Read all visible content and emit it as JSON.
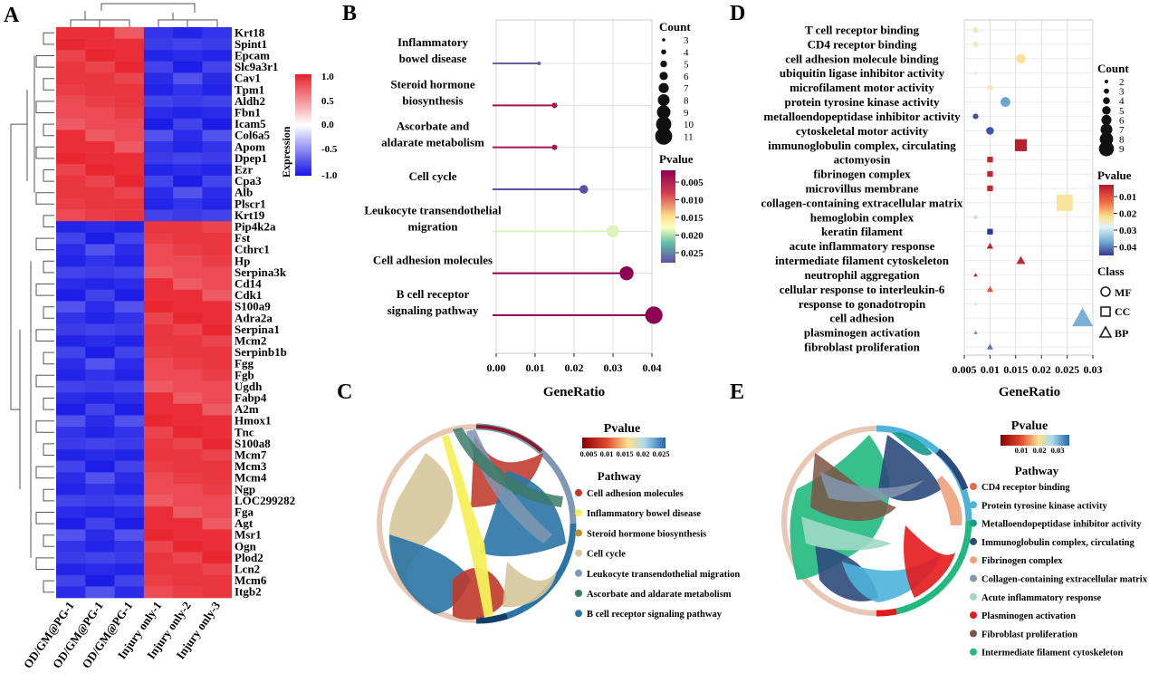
{
  "panel_letters": [
    "A",
    "B",
    "C",
    "D",
    "E"
  ],
  "panelA": {
    "samples": [
      "OD/GM@PG-1",
      "OD/GM@PG-1",
      "OD/GM@PG-1",
      "Injury only-1",
      "Injury only-2",
      "Injury only-3"
    ],
    "genes": [
      "Krt18",
      "Spint1",
      "Epcam",
      "Slc9a3r1",
      "Cav1",
      "Tpm1",
      "Aldh2",
      "Fbn1",
      "Icam5",
      "Col6a5",
      "Apom",
      "Dpep1",
      "Ezr",
      "Cpa3",
      "Alb",
      "Plscr1",
      "Krt19",
      "Pip4k2a",
      "Fst",
      "Cthrc1",
      "Hp",
      "Serpina3k",
      "Cd14",
      "Cdk1",
      "S100a9",
      "Adra2a",
      "Serpina1",
      "Mcm2",
      "Serpinb1b",
      "Fgg",
      "Fgb",
      "Ugdh",
      "Fabp4",
      "A2m",
      "Hmox1",
      "Tnc",
      "S100a8",
      "Mcm7",
      "Mcm3",
      "Mcm4",
      "Ngp",
      "LOC299282",
      "Fga",
      "Agt",
      "Msr1",
      "Ogn",
      "Plod2",
      "Lcn2",
      "Mcm6",
      "Itgb2"
    ],
    "colorbar": {
      "title": "Expression",
      "ticks": [
        "1.0",
        "0.5",
        "0.0",
        "-0.5",
        "-1.0"
      ],
      "max_color": "#e8202a",
      "mid_color": "#ffffff",
      "min_color": "#1515e6"
    }
  },
  "chart_data": [
    {
      "panel": "B",
      "type": "lollipop",
      "title": "",
      "xlabel": "GeneRatio",
      "ylabel": "",
      "xlim": [
        0,
        0.04
      ],
      "xticks": [
        "0.00",
        "0.01",
        "0.02",
        "0.03",
        "0.04"
      ],
      "categories": [
        "Inflammatory\nbowel disease",
        "Steroid hormone\nbiosynthesis",
        "Ascorbate and\naldarate metabolism",
        "Cell cycle",
        "Leukocyte transendothelial\nmigration",
        "Cell adhesion molecules",
        "B cell receptor\nsignaling pathway"
      ],
      "gene_ratio": [
        0.011,
        0.015,
        0.015,
        0.0225,
        0.03,
        0.0335,
        0.0405
      ],
      "count": [
        3,
        4,
        4,
        6,
        8,
        9,
        11
      ],
      "pvalue": [
        0.026,
        0.003,
        0.003,
        0.027,
        0.018,
        0.001,
        0.001
      ],
      "size_legend": {
        "title": "Count",
        "labels": [
          "3",
          "4",
          "5",
          "6",
          "7",
          "8",
          "9",
          "10",
          "11"
        ]
      },
      "color_legend": {
        "title": "Pvalue",
        "ticks": [
          "0.005",
          "0.010",
          "0.015",
          "0.020",
          "0.025"
        ]
      }
    },
    {
      "panel": "D",
      "type": "scatter",
      "title": "",
      "xlabel": "GeneRatio",
      "ylabel": "",
      "xlim": [
        0.005,
        0.03
      ],
      "xticks": [
        "0.005",
        "0.01",
        "0.015",
        "0.02",
        "0.025",
        "0.03"
      ],
      "categories": [
        "T cell receptor binding",
        "CD4 receptor binding",
        "cell adhesion molecule binding",
        "ubiquitin ligase inhibitor activity",
        "microfilament motor activity",
        "protein tyrosine kinase activity",
        "metalloendopeptidase inhibitor activity",
        "cytoskeletal motor activity",
        "immunoglobulin complex, circulating",
        "actomyosin",
        "fibrinogen complex",
        "microvillus membrane",
        "collagen-containing extracellular matrix",
        "hemoglobin complex",
        "keratin filament",
        "acute inflammatory response",
        "intermediate filament cytoskeleton",
        "neutrophil aggregation",
        "cellular response to interleukin-6",
        "response to gonadotropin",
        "cell adhesion",
        "plasminogen activation",
        "fibroblast proliferation"
      ],
      "gene_ratio": [
        0.0072,
        0.0072,
        0.016,
        0.0072,
        0.01,
        0.013,
        0.0072,
        0.01,
        0.016,
        0.01,
        0.01,
        0.01,
        0.0245,
        0.0072,
        0.01,
        0.01,
        0.016,
        0.0072,
        0.01,
        0.0072,
        0.028,
        0.0072,
        0.01
      ],
      "count": [
        3,
        3,
        5,
        2,
        3,
        5,
        3,
        4,
        6,
        3,
        3,
        3,
        8,
        2,
        3,
        3,
        4,
        2,
        3,
        2,
        9,
        2,
        3
      ],
      "pvalue": [
        0.024,
        0.024,
        0.022,
        0.025,
        0.024,
        0.037,
        0.043,
        0.043,
        0.003,
        0.004,
        0.004,
        0.004,
        0.022,
        0.03,
        0.045,
        0.003,
        0.004,
        0.004,
        0.01,
        0.025,
        0.036,
        0.038,
        0.04
      ],
      "class": [
        "MF",
        "MF",
        "MF",
        "MF",
        "MF",
        "MF",
        "MF",
        "MF",
        "CC",
        "CC",
        "CC",
        "CC",
        "CC",
        "CC",
        "CC",
        "BP",
        "BP",
        "BP",
        "BP",
        "BP",
        "BP",
        "BP",
        "BP"
      ],
      "size_legend": {
        "title": "Count",
        "labels": [
          "2",
          "3",
          "4",
          "5",
          "6",
          "7",
          "8",
          "9"
        ]
      },
      "color_legend": {
        "title": "Pvalue",
        "ticks": [
          "0.01",
          "0.02",
          "0.03",
          "0.04"
        ]
      },
      "class_legend": {
        "title": "Class",
        "labels": [
          "MF",
          "CC",
          "BP"
        ]
      }
    }
  ],
  "panelC": {
    "legend_title": "Pathway",
    "pvalue_title": "Pvalue",
    "pvalue_ticks": [
      "0.005",
      "0.01",
      "0.015",
      "0.02",
      "0.025"
    ],
    "pathways": [
      {
        "label": "Cell adhesion molecules",
        "color": "#c0392b"
      },
      {
        "label": "Inflammatory bowel disease",
        "color": "#f4f05a"
      },
      {
        "label": "Steroid hormone biosynthesis",
        "color": "#b8902e"
      },
      {
        "label": "Cell cycle",
        "color": "#d6c79a"
      },
      {
        "label": "Leukocyte transendothelial migration",
        "color": "#7f98b3"
      },
      {
        "label": "Ascorbate and aldarate metabolism",
        "color": "#3c7a6a"
      },
      {
        "label": "B cell receptor signaling pathway",
        "color": "#2a74a6"
      }
    ]
  },
  "panelE": {
    "legend_title": "Pathway",
    "pvalue_title": "Pvalue",
    "pvalue_ticks": [
      "0.01",
      "0.02",
      "0.03"
    ],
    "pathways": [
      {
        "label": "CD4 receptor binding",
        "color": "#e8684a"
      },
      {
        "label": "Protein tyrosine kinase activity",
        "color": "#4fb3d9"
      },
      {
        "label": "Metalloendopeptidase inhibitor activity",
        "color": "#11998e"
      },
      {
        "label": "Immunoglobulin complex, circulating",
        "color": "#2d4a7c"
      },
      {
        "label": "Fibrinogen complex",
        "color": "#f0a17a"
      },
      {
        "label": "Collagen-containing extracellular matrix",
        "color": "#8497b0"
      },
      {
        "label": "Acute inflammatory response",
        "color": "#9ed8c5"
      },
      {
        "label": "Plasminogen activation",
        "color": "#e41a1c"
      },
      {
        "label": "Fibroblast proliferation",
        "color": "#7b5544"
      },
      {
        "label": "Intermediate filament cytoskeleton",
        "color": "#21b980"
      }
    ]
  }
}
